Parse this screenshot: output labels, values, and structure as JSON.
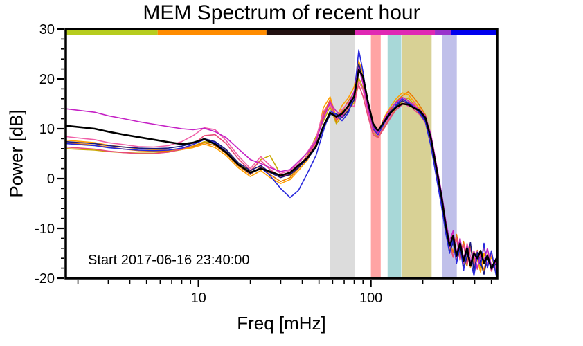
{
  "chart_data": {
    "type": "line",
    "title": "MEM Spectrum of recent hour",
    "xlabel": "Freq [mHz]",
    "ylabel": "Power [dB]",
    "annotation": "Start 2017-06-16 23:40:00",
    "x_scale": "log",
    "xlim": [
      1.7,
      540
    ],
    "ylim": [
      -20,
      30
    ],
    "grid": false,
    "legend": "none",
    "x_major_ticks": [
      10,
      100
    ],
    "x_major_labels": [
      "10",
      "100"
    ],
    "x_minor_ticks": [
      2,
      3,
      4,
      5,
      6,
      7,
      8,
      9,
      20,
      30,
      40,
      50,
      60,
      70,
      80,
      90,
      200,
      300,
      400,
      500
    ],
    "y_major_ticks": [
      -20,
      -10,
      0,
      10,
      20,
      30
    ],
    "y_minor_step": 2,
    "bands": [
      {
        "name": "band-gray",
        "color": "#dcdcdc",
        "from": 58,
        "to": 81
      },
      {
        "name": "band-pink",
        "color": "#ffa4a4",
        "from": 100,
        "to": 114
      },
      {
        "name": "band-cyan",
        "color": "#a8d8d8",
        "from": 125,
        "to": 150
      },
      {
        "name": "band-khaki",
        "color": "#d8d195",
        "from": 152,
        "to": 225
      },
      {
        "name": "band-lavender",
        "color": "#c0c0ea",
        "from": 260,
        "to": 315
      }
    ],
    "colorbar": [
      {
        "name": "seg-yellowgreen",
        "color": "#b6cc1e",
        "from": 1.7,
        "to": 5.8
      },
      {
        "name": "seg-orange",
        "color": "#ff8c00",
        "from": 5.8,
        "to": 24.8
      },
      {
        "name": "seg-dark",
        "color": "#221111",
        "from": 24.8,
        "to": 81
      },
      {
        "name": "seg-magenta",
        "color": "#e028b4",
        "from": 81,
        "to": 235
      },
      {
        "name": "seg-purple",
        "color": "#9932cc",
        "from": 235,
        "to": 293
      },
      {
        "name": "seg-blue",
        "color": "#0000ee",
        "from": 293,
        "to": 540
      }
    ],
    "x": [
      1.7,
      2.5,
      3.0,
      3.7,
      4.5,
      5.5,
      6.7,
      8.0,
      9.3,
      10.8,
      12.5,
      14.5,
      17,
      20,
      23,
      26,
      30,
      34,
      38,
      43,
      48,
      53,
      58,
      63,
      68,
      74,
      80,
      85,
      90,
      96,
      103,
      110,
      120,
      130,
      140,
      152,
      165,
      178,
      192,
      207,
      223,
      240,
      258,
      272,
      286,
      300,
      314,
      329,
      345,
      361,
      378,
      396,
      414,
      433,
      453,
      474,
      500,
      535
    ],
    "series": [
      {
        "name": "line-goldenrod",
        "color": "#c9a800",
        "width": 1.6,
        "values": [
          6.0,
          5.7,
          5.4,
          5.2,
          5.1,
          5.1,
          5.3,
          5.8,
          6.5,
          7.4,
          7.0,
          5.6,
          3.2,
          1.4,
          3.8,
          4.6,
          0.8,
          0.6,
          2.2,
          4.8,
          8.4,
          11.5,
          14.4,
          11.0,
          12.4,
          13.8,
          15.2,
          20.2,
          18.2,
          13.8,
          9.2,
          8.4,
          10.4,
          12.4,
          14.2,
          15.4,
          16.2,
          14.8,
          13.4,
          11.6,
          7.0,
          1.0,
          -5.2,
          -10.2,
          -14.2,
          -11.4,
          -15.4,
          -12.4,
          -16.2,
          -17.6,
          -13.2,
          -16.6,
          -14.6,
          -18.0,
          -15.0,
          -17.4,
          -15.6,
          -18.8
        ]
      },
      {
        "name": "line-darkorange",
        "color": "#e87800",
        "width": 1.6,
        "values": [
          7.2,
          6.7,
          6.3,
          5.9,
          5.6,
          5.5,
          5.5,
          5.8,
          6.4,
          7.2,
          6.6,
          5.0,
          2.6,
          0.8,
          2.4,
          0.8,
          -0.6,
          0.2,
          2.0,
          4.4,
          7.6,
          13.0,
          15.8,
          11.4,
          13.4,
          15.6,
          17.2,
          22.6,
          19.6,
          14.6,
          9.8,
          8.6,
          11.6,
          13.6,
          15.4,
          16.6,
          17.4,
          16.2,
          14.6,
          12.8,
          8.2,
          2.4,
          -4.2,
          -9.2,
          -12.8,
          -14.8,
          -11.2,
          -15.6,
          -12.6,
          -16.8,
          -13.4,
          -17.6,
          -14.4,
          -16.4,
          -18.4,
          -15.2,
          -17.8,
          -16.6
        ]
      },
      {
        "name": "line-orange",
        "color": "#ffa000",
        "width": 1.6,
        "values": [
          7.7,
          7.2,
          6.7,
          6.3,
          6.0,
          5.8,
          5.7,
          5.8,
          6.2,
          6.9,
          6.2,
          4.6,
          2.2,
          0.4,
          1.6,
          0.2,
          -1.0,
          -0.2,
          1.6,
          3.8,
          6.8,
          14.2,
          16.4,
          12.2,
          14.6,
          16.2,
          18.4,
          23.6,
          21.0,
          15.8,
          10.6,
          9.0,
          12.4,
          14.4,
          16.0,
          17.2,
          16.8,
          15.4,
          14.0,
          12.4,
          7.6,
          1.6,
          -4.6,
          -9.8,
          -13.8,
          -10.8,
          -15.2,
          -12.2,
          -16.6,
          -13.6,
          -17.8,
          -14.6,
          -16.2,
          -18.8,
          -15.0,
          -17.2,
          -15.8,
          -18.2
        ]
      },
      {
        "name": "line-hotpink",
        "color": "#f060a8",
        "width": 1.6,
        "values": [
          8.4,
          7.8,
          7.2,
          6.8,
          6.4,
          6.3,
          6.6,
          7.4,
          8.6,
          10.2,
          9.8,
          7.6,
          4.6,
          2.0,
          4.4,
          2.6,
          1.0,
          1.6,
          3.0,
          5.4,
          8.0,
          13.5,
          14.8,
          12.0,
          13.8,
          15.2,
          14.4,
          19.5,
          17.8,
          13.4,
          9.4,
          8.6,
          10.8,
          12.6,
          14.6,
          15.8,
          14.4,
          15.2,
          13.2,
          11.8,
          7.4,
          1.2,
          -5.0,
          -10.0,
          -14.0,
          -11.0,
          -16.0,
          -12.5,
          -17.0,
          -13.0,
          -15.5,
          -17.8,
          -14.5,
          -16.8,
          -13.8,
          -17.2,
          -15.2,
          -18.4
        ]
      },
      {
        "name": "line-rosered",
        "color": "#e84a78",
        "width": 1.6,
        "values": [
          6.3,
          5.9,
          5.5,
          5.2,
          5.0,
          5.0,
          5.3,
          5.9,
          6.8,
          8.6,
          8.8,
          7.0,
          4.0,
          1.6,
          3.6,
          1.8,
          0.4,
          1.0,
          2.4,
          4.6,
          7.2,
          12.5,
          15.6,
          11.8,
          12.8,
          14.2,
          15.8,
          18.8,
          16.5,
          12.6,
          8.8,
          8.2,
          10.2,
          12.2,
          13.8,
          14.8,
          15.4,
          13.8,
          12.8,
          11.2,
          6.8,
          0.6,
          -5.6,
          -10.5,
          -13.0,
          -15.8,
          -11.8,
          -16.4,
          -13.2,
          -17.4,
          -14.2,
          -16.0,
          -18.2,
          -14.8,
          -17.0,
          -15.4,
          -18.6,
          -16.2
        ]
      },
      {
        "name": "line-navy",
        "color": "#181880",
        "width": 1.6,
        "values": [
          7.4,
          7.0,
          6.6,
          6.3,
          6.1,
          6.0,
          6.1,
          6.5,
          7.1,
          8.0,
          7.4,
          5.8,
          3.2,
          1.6,
          2.6,
          1.2,
          0.2,
          0.8,
          2.2,
          4.0,
          6.2,
          10.0,
          12.8,
          13.0,
          12.2,
          13.6,
          15.8,
          23.0,
          20.0,
          15.0,
          10.4,
          9.4,
          11.8,
          13.4,
          14.6,
          15.6,
          15.0,
          14.4,
          13.2,
          11.8,
          7.8,
          1.8,
          -4.8,
          -10.8,
          -14.8,
          -12.8,
          -16.8,
          -13.8,
          -17.8,
          -15.8,
          -12.8,
          -18.8,
          -14.8,
          -16.8,
          -19.2,
          -15.8,
          -18.2,
          -17.0
        ]
      },
      {
        "name": "line-blue",
        "color": "#2828dc",
        "width": 1.6,
        "values": [
          7.0,
          6.6,
          6.2,
          5.9,
          5.7,
          5.6,
          5.7,
          6.1,
          6.8,
          7.8,
          7.2,
          5.4,
          2.8,
          1.0,
          2.2,
          0.6,
          -2.0,
          -3.8,
          -2.4,
          1.2,
          4.6,
          9.5,
          13.6,
          12.8,
          11.6,
          13.2,
          16.8,
          25.8,
          21.5,
          14.8,
          10.0,
          8.8,
          11.2,
          13.0,
          14.8,
          16.0,
          15.2,
          14.4,
          13.0,
          11.4,
          6.4,
          0.2,
          -6.0,
          -11.0,
          -15.0,
          -12.0,
          -17.0,
          -13.5,
          -18.5,
          -14.0,
          -16.5,
          -19.5,
          -15.5,
          -17.5,
          -13.0,
          -18.0,
          -14.5,
          -19.8
        ]
      },
      {
        "name": "line-magenta",
        "color": "#c520c5",
        "width": 1.6,
        "values": [
          14.0,
          13.3,
          12.6,
          12.0,
          11.4,
          10.9,
          10.4,
          10.0,
          9.8,
          10.1,
          9.4,
          8.2,
          6.0,
          3.8,
          3.0,
          2.2,
          1.4,
          1.8,
          3.4,
          5.2,
          7.5,
          12.0,
          15.2,
          13.5,
          12.4,
          14.8,
          17.5,
          22.3,
          19.0,
          14.2,
          10.2,
          9.2,
          12.0,
          14.0,
          15.2,
          16.3,
          15.6,
          14.6,
          13.8,
          12.6,
          8.8,
          2.8,
          -3.2,
          -8.5,
          -12.5,
          -10.5,
          -15.0,
          -12.0,
          -16.0,
          -13.5,
          -17.0,
          -14.5,
          -18.0,
          -15.5,
          -16.5,
          -14.0,
          -17.5,
          -16.8
        ]
      },
      {
        "name": "line-black-mean",
        "color": "#000000",
        "width": 2.6,
        "values": [
          10.6,
          10.0,
          9.4,
          8.8,
          8.3,
          7.8,
          7.3,
          6.9,
          7.2,
          7.9,
          6.9,
          5.2,
          2.8,
          1.2,
          2.0,
          1.4,
          0.6,
          1.2,
          2.6,
          4.2,
          6.5,
          10.5,
          13.2,
          12.4,
          13.0,
          14.6,
          16.5,
          21.8,
          20.5,
          15.5,
          11.0,
          9.6,
          11.5,
          13.2,
          14.3,
          15.0,
          14.8,
          14.2,
          13.6,
          12.2,
          8.0,
          2.0,
          -4.0,
          -9.5,
          -13.5,
          -11.5,
          -15.5,
          -13.0,
          -16.5,
          -14.0,
          -17.5,
          -15.0,
          -16.0,
          -14.5,
          -17.0,
          -15.5,
          -18.0,
          -16.0
        ]
      }
    ]
  }
}
